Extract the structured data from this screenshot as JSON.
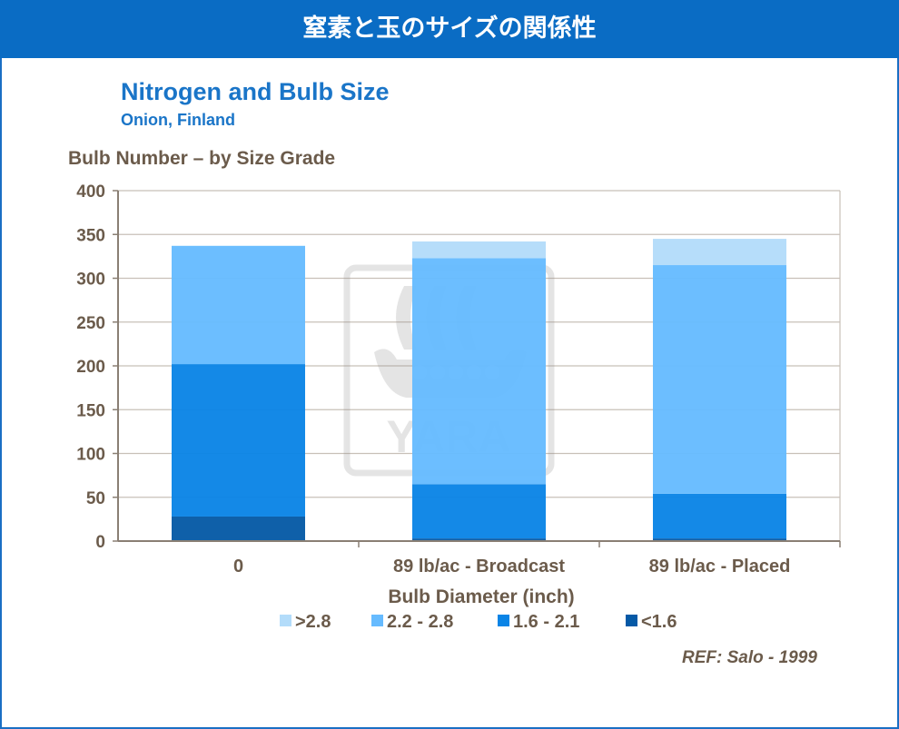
{
  "header": {
    "title": "窒素と玉のサイズの関係性"
  },
  "watermark": {
    "text": "YARA",
    "icon": "yara-viking-ship-logo"
  },
  "reference": "REF: Salo -  1999",
  "colors": {
    "header_bg": "#0a6cc4",
    "title": "#1a75c8",
    "axis_text": "#6b5b4b",
    "series": {
      ">2.8": "#b3dcfa",
      "2.2 - 2.8": "#66bbff",
      "1.6 - 2.1": "#0a84e6",
      "<1.6": "#0559a6"
    }
  },
  "chart_data": {
    "type": "bar",
    "stacked": true,
    "title": "Nitrogen and Bulb Size",
    "subtitle": "Onion, Finland",
    "ylabel": "Bulb Number – by Size Grade",
    "xlabel": "Bulb Diameter (inch)",
    "ylim": [
      0,
      400
    ],
    "yticks": [
      0,
      50,
      100,
      150,
      200,
      250,
      300,
      350,
      400
    ],
    "grid": true,
    "legend_position": "bottom",
    "categories": [
      "0",
      "89 lb/ac - Broadcast",
      "89 lb/ac - Placed"
    ],
    "series": [
      {
        "name": "<1.6",
        "values": [
          28,
          3,
          3
        ]
      },
      {
        "name": "1.6 - 2.1",
        "values": [
          174,
          62,
          51
        ]
      },
      {
        "name": "2.2 - 2.8",
        "values": [
          135,
          258,
          261
        ]
      },
      {
        "name": ">2.8",
        "values": [
          0,
          19,
          30
        ]
      }
    ],
    "legend_order": [
      ">2.8",
      "2.2 - 2.8",
      "1.6 - 2.1",
      "<1.6"
    ]
  }
}
